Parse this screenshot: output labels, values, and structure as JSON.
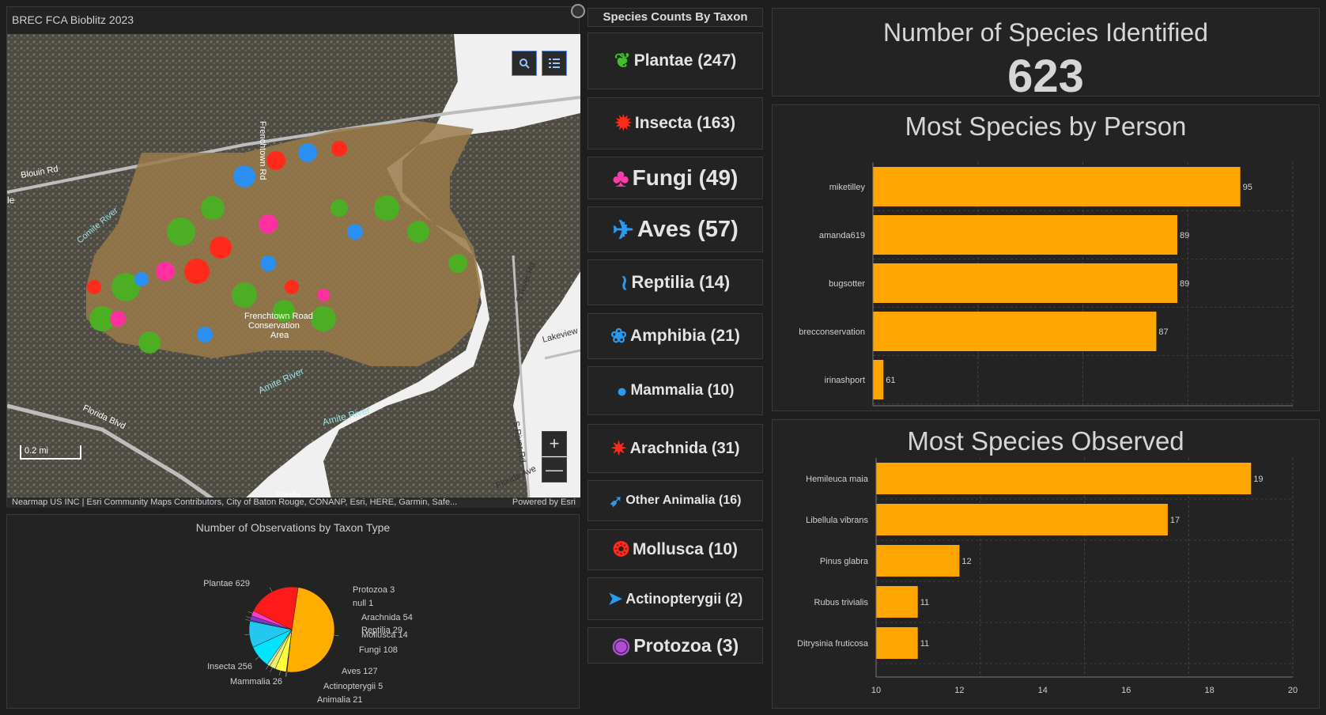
{
  "map": {
    "title": "BREC FCA Bioblitz 2023",
    "attribution": "Nearmap US INC | Esri Community Maps Contributors, City of Baton Rouge, CONANP, Esri, HERE, Garmin, Safe...",
    "powered_by": "Powered by Esri",
    "scale_label": "0.2 mi",
    "zoom_in": "+",
    "zoom_out": "—",
    "labels": {
      "frenchtown_rd": "Frenchtown Rd",
      "blouin_rd": "Blouin Rd",
      "conservation_area": "Frenchtown Road",
      "conservation_area2": "Conservation",
      "conservation_area3": "Area",
      "amite_river": "Amite River",
      "amite_river2": "Amite River",
      "s_river_rd": "S River Rd",
      "s_river_rd2": "S River Rd",
      "lakeview": "Lakeview",
      "florida_blvd": "Florida Blvd",
      "florida_ave": "Florida Ave",
      "comite_river": "Comite River",
      "le": "le",
      "flanda": "Flanda"
    },
    "colors": {
      "plantae": "#4caf23",
      "insecta": "#ff2a1a",
      "aves": "#2a8ff0",
      "fungi": "#ff2fa0"
    }
  },
  "pie": {
    "title": "Number of Observations by Taxon Type",
    "slices": [
      {
        "label": "Plantae",
        "value": 629,
        "color": "#ffae00"
      },
      {
        "label": "Protozoa",
        "value": 3,
        "color": "#b04bd8"
      },
      {
        "label": "null",
        "value": 1,
        "color": "#cccccc"
      },
      {
        "label": "Arachnida",
        "value": 54,
        "color": "#ffff3a"
      },
      {
        "label": "Reptilia",
        "value": 29,
        "color": "#f0f070"
      },
      {
        "label": "Mollusca",
        "value": 14,
        "color": "#e0e0a0"
      },
      {
        "label": "Fungi",
        "value": 108,
        "color": "#00e5ff"
      },
      {
        "label": "Aves",
        "value": 127,
        "color": "#22c8f0"
      },
      {
        "label": "Actinopterygii",
        "value": 5,
        "color": "#3a6ad8"
      },
      {
        "label": "Animalia",
        "value": 21,
        "color": "#7a3ad8"
      },
      {
        "label": "Mammalia",
        "value": 26,
        "color": "#ff3ac8"
      },
      {
        "label": "Insecta",
        "value": 256,
        "color": "#ff1a1a"
      }
    ]
  },
  "taxon_header": "Species Counts By Taxon",
  "taxa": [
    {
      "label": "Plantae (247)",
      "icon": "leaf-icon",
      "color": "#3fbf2a"
    },
    {
      "label": "Insecta (163)",
      "icon": "bug-icon",
      "color": "#ff2a1a"
    },
    {
      "label": "Fungi (49)",
      "icon": "mushroom-icon",
      "color": "#ff3aa8"
    },
    {
      "label": "Aves (57)",
      "icon": "bird-icon",
      "color": "#2a9af0"
    },
    {
      "label": "Reptilia (14)",
      "icon": "lizard-icon",
      "color": "#2a9af0"
    },
    {
      "label": "Amphibia (21)",
      "icon": "frog-icon",
      "color": "#2a9af0"
    },
    {
      "label": "Mammalia (10)",
      "icon": "mammal-icon",
      "color": "#2a9af0"
    },
    {
      "label": "Arachnida (31)",
      "icon": "spider-icon",
      "color": "#ff2a1a"
    },
    {
      "label": "Other Animalia (16)",
      "icon": "animal-icon",
      "color": "#2a9af0"
    },
    {
      "label": "Mollusca (10)",
      "icon": "snail-icon",
      "color": "#ff2a1a"
    },
    {
      "label": "Actinopterygii (2)",
      "icon": "fish-icon",
      "color": "#2a9af0"
    },
    {
      "label": "Protozoa (3)",
      "icon": "protozoa-icon",
      "color": "#b04bd8"
    }
  ],
  "kpi": {
    "title": "Number of Species Identified",
    "value": "623"
  },
  "chart_data": [
    {
      "type": "bar",
      "title": "Most Species by Person",
      "categories": [
        "miketilley",
        "amanda619",
        "bugsotter",
        "brecconservation",
        "irinashport"
      ],
      "values": [
        95,
        89,
        89,
        87,
        61
      ],
      "xlim": [
        60,
        100
      ],
      "grid": true,
      "color": "#ffa600"
    },
    {
      "type": "bar",
      "title": "Most Species Observed",
      "categories": [
        "Hemileuca maia",
        "Libellula vibrans",
        "Pinus glabra",
        "Rubus trivialis",
        "Ditrysinia fruticosa"
      ],
      "values": [
        19,
        17,
        12,
        11,
        11
      ],
      "xlim": [
        10,
        20
      ],
      "xticks": [
        "10",
        "12",
        "14",
        "16",
        "18",
        "20"
      ],
      "grid": true,
      "color": "#ffa600"
    }
  ]
}
